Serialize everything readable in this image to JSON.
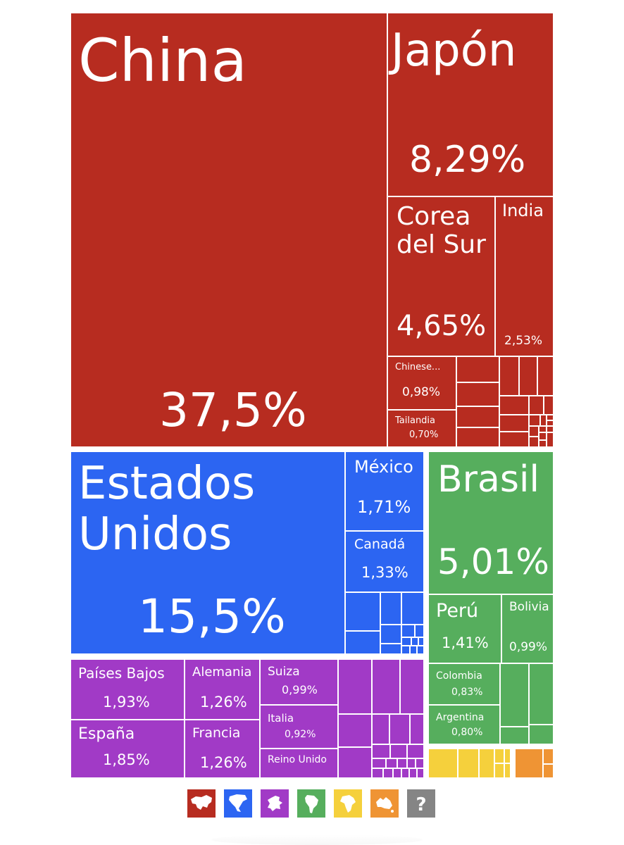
{
  "chart_data": {
    "type": "treemap",
    "title": "",
    "colors": {
      "asia": "#b72c20",
      "north-america": "#2c65f2",
      "europe": "#a13ac6",
      "south-america": "#56ae5d",
      "africa": "#f5d03c",
      "oceania": "#ef9434",
      "other": "#858585"
    },
    "tiles": [
      {
        "name": "China",
        "value_label": "37,5%",
        "value": 37.5,
        "group": "asia"
      },
      {
        "name": "Japón",
        "value_label": "8,29%",
        "value": 8.29,
        "group": "asia"
      },
      {
        "name": "Corea\ndel Sur",
        "value_label": "4,65%",
        "value": 4.65,
        "group": "asia"
      },
      {
        "name": "India",
        "value_label": "2,53%",
        "value": 2.53,
        "group": "asia"
      },
      {
        "name": "Chinese...",
        "value_label": "0,98%",
        "value": 0.98,
        "group": "asia"
      },
      {
        "name": "Tailandia",
        "value_label": "0,70%",
        "value": 0.7,
        "group": "asia"
      },
      {
        "name": "Estados\nUnidos",
        "value_label": "15,5%",
        "value": 15.5,
        "group": "north-america"
      },
      {
        "name": "México",
        "value_label": "1,71%",
        "value": 1.71,
        "group": "north-america"
      },
      {
        "name": "Canadá",
        "value_label": "1,33%",
        "value": 1.33,
        "group": "north-america"
      },
      {
        "name": "Brasil",
        "value_label": "5,01%",
        "value": 5.01,
        "group": "south-america"
      },
      {
        "name": "Perú",
        "value_label": "1,41%",
        "value": 1.41,
        "group": "south-america"
      },
      {
        "name": "Bolivia",
        "value_label": "0,99%",
        "value": 0.99,
        "group": "south-america"
      },
      {
        "name": "Colombia",
        "value_label": "0,83%",
        "value": 0.83,
        "group": "south-america"
      },
      {
        "name": "Argentina",
        "value_label": "0,80%",
        "value": 0.8,
        "group": "south-america"
      },
      {
        "name": "Países Bajos",
        "value_label": "1,93%",
        "value": 1.93,
        "group": "europe"
      },
      {
        "name": "España",
        "value_label": "1,85%",
        "value": 1.85,
        "group": "europe"
      },
      {
        "name": "Alemania",
        "value_label": "1,26%",
        "value": 1.26,
        "group": "europe"
      },
      {
        "name": "Francia",
        "value_label": "1,26%",
        "value": 1.26,
        "group": "europe"
      },
      {
        "name": "Suiza",
        "value_label": "0,99%",
        "value": 0.99,
        "group": "europe"
      },
      {
        "name": "Italia",
        "value_label": "0,92%",
        "value": 0.92,
        "group": "europe"
      },
      {
        "name": "Reino Unido",
        "value_label": "",
        "group": "europe"
      }
    ],
    "legend": [
      {
        "group": "asia",
        "icon": "asia-map-icon"
      },
      {
        "group": "north-america",
        "icon": "north-america-map-icon"
      },
      {
        "group": "europe",
        "icon": "europe-map-icon"
      },
      {
        "group": "south-america",
        "icon": "south-america-map-icon"
      },
      {
        "group": "africa",
        "icon": "africa-map-icon"
      },
      {
        "group": "oceania",
        "icon": "oceania-map-icon"
      },
      {
        "group": "other",
        "icon": "question-mark-icon"
      }
    ]
  }
}
